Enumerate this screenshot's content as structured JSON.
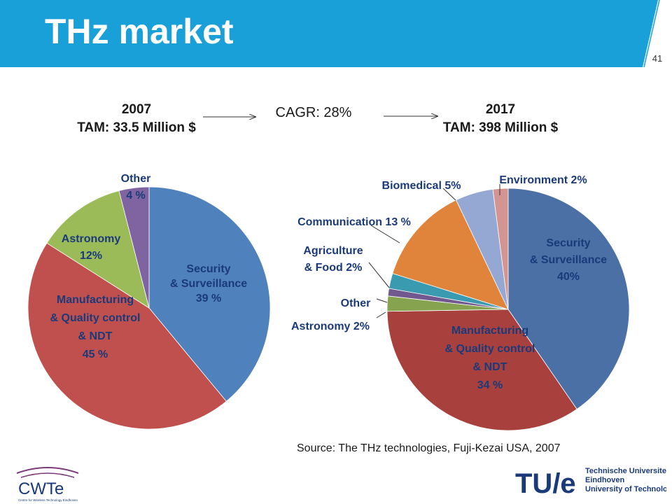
{
  "slide": {
    "title": "THz market",
    "number": "41"
  },
  "tam_2007": {
    "year": "2007",
    "tam": "TAM: 33.5 Million $"
  },
  "tam_2017": {
    "year": "2017",
    "tam": "TAM: 398 Million $"
  },
  "cagr": "CAGR: 28%",
  "source": "Source: The THz technologies, Fuji-Kezai USA, 2007",
  "logos": {
    "cwte": {
      "name": "CWTe",
      "subtitle": "Centre for Wireless Technology Eindhoven"
    },
    "tue": {
      "mark": "TU/e",
      "lines": [
        "Technische Universiteit",
        "Eindhoven",
        "University of Technology"
      ]
    }
  },
  "colors": {
    "header": "#1AA0D8",
    "tue_navy": "#1a3a7a",
    "cwte_purple": "#7a3b7a"
  },
  "chart_data": [
    {
      "type": "pie",
      "year": "2007",
      "slices": [
        {
          "label_lines": [
            "Security",
            "& Surveillance",
            "39 %"
          ],
          "value": 39,
          "color": "#4F81BD"
        },
        {
          "label_lines": [
            "Manufacturing",
            "& Quality control",
            "& NDT",
            "45 %"
          ],
          "value": 45,
          "color": "#C0504D"
        },
        {
          "label_lines": [
            "Astronomy",
            "12%"
          ],
          "value": 12,
          "color": "#9BBB59"
        },
        {
          "label_lines": [
            "Other",
            "4 %"
          ],
          "value": 4,
          "color": "#8064A2"
        }
      ]
    },
    {
      "type": "pie",
      "year": "2017",
      "slices": [
        {
          "label_lines": [
            "Security",
            "& Surveillance",
            "40%"
          ],
          "value": 40,
          "color": "#4A70A6"
        },
        {
          "label_lines": [
            "Manufacturing",
            "& Quality control",
            "& NDT",
            "34 %"
          ],
          "value": 34,
          "color": "#A8403D"
        },
        {
          "label_lines": [
            "Astronomy 2%"
          ],
          "value": 2,
          "color": "#86A350"
        },
        {
          "label_lines": [
            "Other"
          ],
          "value": 1,
          "color": "#71598F"
        },
        {
          "label_lines": [
            "Agriculture",
            "& Food 2%"
          ],
          "value": 2,
          "color": "#3A9BB0"
        },
        {
          "label_lines": [
            "Communication 13 %"
          ],
          "value": 13,
          "color": "#E0843C"
        },
        {
          "label_lines": [
            "Biomedical 5%"
          ],
          "value": 5,
          "color": "#95A8D3"
        },
        {
          "label_lines": [
            "Environment 2%"
          ],
          "value": 2,
          "color": "#D39592"
        }
      ]
    }
  ]
}
